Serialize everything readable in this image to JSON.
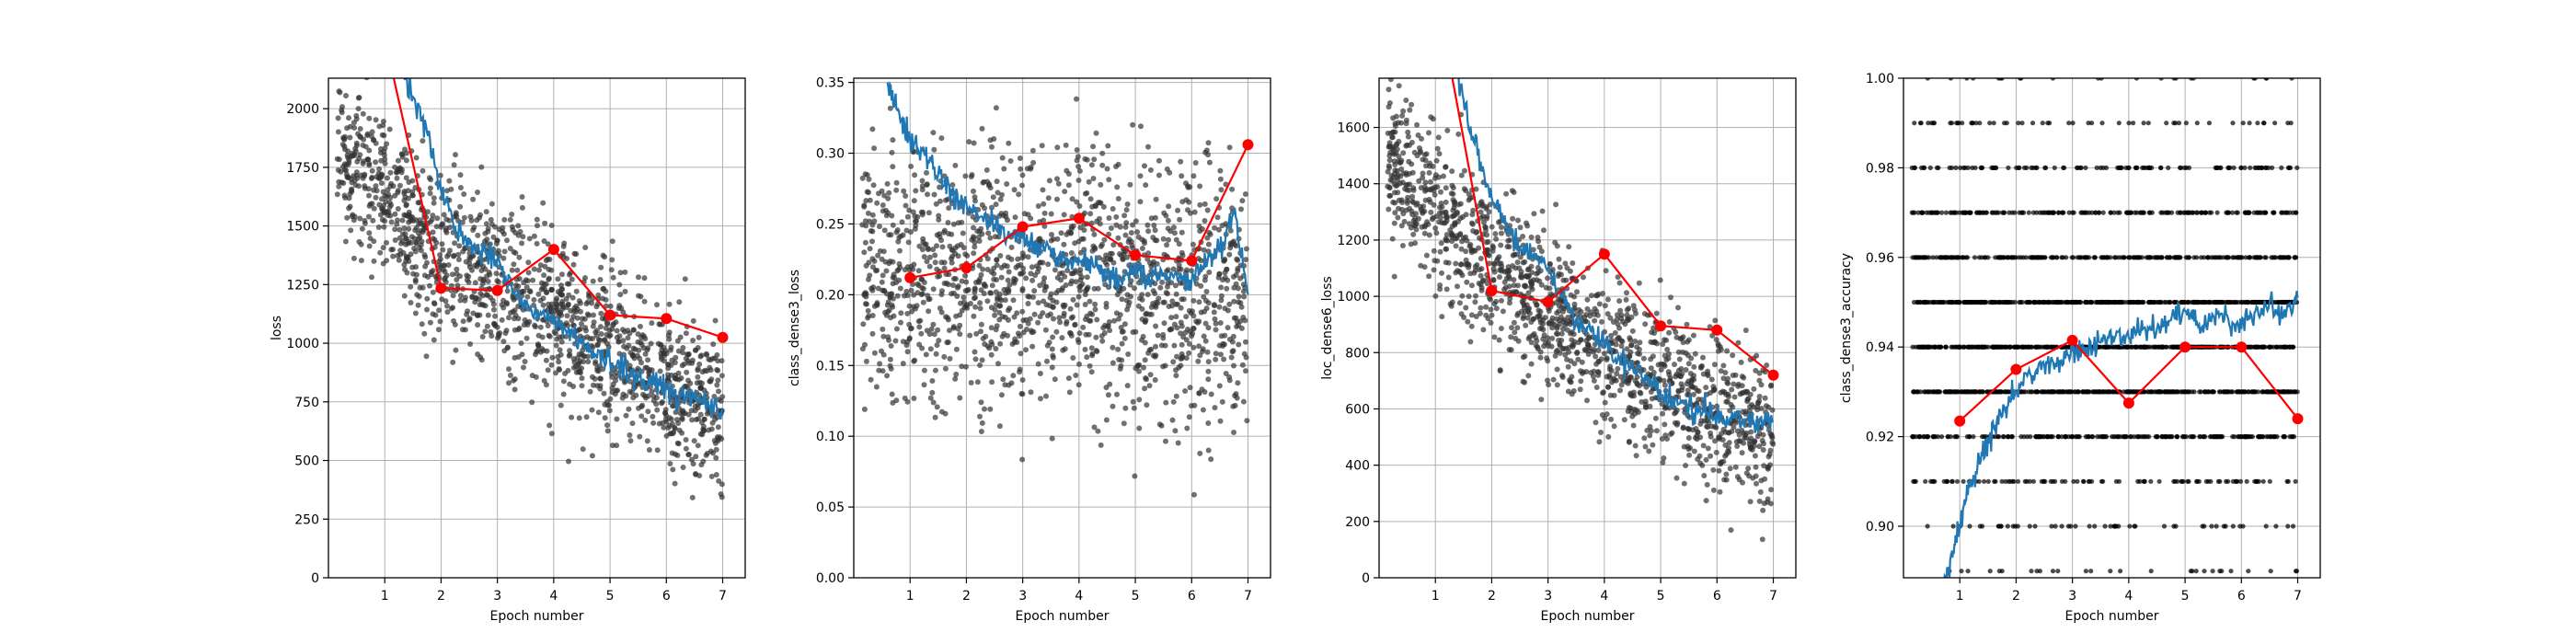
{
  "chart_data": [
    {
      "type": "line",
      "xlabel": "Epoch number",
      "ylabel": "loss",
      "xlim": [
        0,
        7.4
      ],
      "ylim": [
        0,
        2130
      ],
      "xticks": [
        1,
        2,
        3,
        4,
        5,
        6,
        7
      ],
      "yticks": [
        0,
        250,
        500,
        750,
        1000,
        1250,
        1500,
        1750,
        2000
      ],
      "grid": true,
      "series": [
        {
          "kind": "epoch-marker-line",
          "color": "#ff0000",
          "x": [
            1,
            2,
            3,
            4,
            5,
            6,
            7
          ],
          "y": [
            2300,
            1235,
            1225,
            1400,
            1120,
            1105,
            1025
          ]
        },
        {
          "kind": "running-average",
          "color": "#1f77b4",
          "x": [
            0.75,
            1.0,
            1.25,
            1.5,
            1.75,
            2.0,
            2.25,
            2.5,
            2.75,
            3.0,
            3.25,
            3.5,
            3.75,
            4.0,
            4.25,
            4.5,
            4.75,
            5.0,
            5.25,
            5.5,
            5.75,
            6.0,
            6.25,
            6.5,
            6.75,
            7.0
          ],
          "y": [
            2140,
            2300,
            2250,
            2050,
            1900,
            1650,
            1500,
            1420,
            1400,
            1360,
            1250,
            1150,
            1120,
            1080,
            1050,
            1000,
            950,
            920,
            900,
            860,
            820,
            800,
            770,
            760,
            740,
            720
          ]
        },
        {
          "kind": "scatter",
          "color": "#333333",
          "x_start": 0.15,
          "x_end": 7.0,
          "count": 1500,
          "trend": [
            [
              0.15,
              1800
            ],
            [
              2.0,
              1400
            ],
            [
              4.0,
              1100
            ],
            [
              7.0,
              700
            ]
          ],
          "spread": 280
        }
      ]
    },
    {
      "type": "line",
      "xlabel": "Epoch number",
      "ylabel": "class_dense3_loss",
      "xlim": [
        0,
        7.4
      ],
      "ylim": [
        0,
        0.353
      ],
      "xticks": [
        1,
        2,
        3,
        4,
        5,
        6,
        7
      ],
      "yticks": [
        0.0,
        0.05,
        0.1,
        0.15,
        0.2,
        0.25,
        0.3,
        0.35
      ],
      "yticklabels": [
        "0.00",
        "0.05",
        "0.10",
        "0.15",
        "0.20",
        "0.25",
        "0.30",
        "0.35"
      ],
      "grid": true,
      "series": [
        {
          "kind": "epoch-marker-line",
          "color": "#ff0000",
          "x": [
            1,
            2,
            3,
            4,
            5,
            6,
            7
          ],
          "y": [
            0.212,
            0.219,
            0.248,
            0.254,
            0.228,
            0.224,
            0.306
          ]
        },
        {
          "kind": "running-average",
          "color": "#1f77b4",
          "x": [
            0.6,
            0.8,
            1.0,
            1.25,
            1.5,
            1.75,
            2.0,
            2.25,
            2.5,
            2.75,
            3.0,
            3.25,
            3.5,
            3.75,
            4.0,
            4.25,
            4.5,
            4.75,
            5.0,
            5.25,
            5.5,
            5.75,
            6.0,
            6.25,
            6.5,
            6.75,
            7.0
          ],
          "y": [
            0.35,
            0.33,
            0.31,
            0.3,
            0.285,
            0.27,
            0.265,
            0.255,
            0.25,
            0.245,
            0.24,
            0.235,
            0.23,
            0.225,
            0.225,
            0.22,
            0.215,
            0.21,
            0.22,
            0.21,
            0.215,
            0.21,
            0.21,
            0.22,
            0.23,
            0.26,
            0.2
          ]
        },
        {
          "kind": "scatter",
          "color": "#333333",
          "x_start": 0.15,
          "x_end": 7.0,
          "count": 1500,
          "trend": [
            [
              0.15,
              0.22
            ],
            [
              7.0,
              0.2
            ]
          ],
          "spread": 0.075
        }
      ]
    },
    {
      "type": "line",
      "xlabel": "Epoch number",
      "ylabel": "loc_dense6_loss",
      "xlim": [
        0,
        7.4
      ],
      "ylim": [
        0,
        1775
      ],
      "xticks": [
        1,
        2,
        3,
        4,
        5,
        6,
        7
      ],
      "yticks": [
        0,
        200,
        400,
        600,
        800,
        1000,
        1200,
        1400,
        1600
      ],
      "grid": true,
      "series": [
        {
          "kind": "epoch-marker-line",
          "color": "#ff0000",
          "x": [
            1,
            2,
            3,
            4,
            5,
            6,
            7
          ],
          "y": [
            2100,
            1020,
            980,
            1150,
            895,
            880,
            720
          ]
        },
        {
          "kind": "running-average",
          "color": "#1f77b4",
          "x": [
            0.75,
            1.0,
            1.25,
            1.5,
            1.75,
            2.0,
            2.25,
            2.5,
            2.75,
            3.0,
            3.25,
            3.5,
            3.75,
            4.0,
            4.25,
            4.5,
            4.75,
            5.0,
            5.25,
            5.5,
            5.75,
            6.0,
            6.25,
            6.5,
            6.75,
            7.0
          ],
          "y": [
            1800,
            1950,
            1900,
            1700,
            1500,
            1350,
            1250,
            1180,
            1150,
            1100,
            1000,
            920,
            880,
            830,
            790,
            750,
            700,
            650,
            630,
            610,
            590,
            580,
            560,
            560,
            550,
            560
          ]
        },
        {
          "kind": "scatter",
          "color": "#333333",
          "x_start": 0.15,
          "x_end": 7.0,
          "count": 1500,
          "trend": [
            [
              0.15,
              1500
            ],
            [
              2.0,
              1100
            ],
            [
              4.0,
              800
            ],
            [
              7.0,
              500
            ]
          ],
          "spread": 230
        }
      ]
    },
    {
      "type": "line",
      "xlabel": "Epoch number",
      "ylabel": "class_dense3_accuracy",
      "xlim": [
        0,
        7.4
      ],
      "ylim": [
        0.8885,
        1.0
      ],
      "xticks": [
        1,
        2,
        3,
        4,
        5,
        6,
        7
      ],
      "yticks": [
        0.9,
        0.92,
        0.94,
        0.96,
        0.98,
        1.0
      ],
      "yticklabels": [
        "0.90",
        "0.92",
        "0.94",
        "0.96",
        "0.98",
        "1.00"
      ],
      "grid": true,
      "series": [
        {
          "kind": "epoch-marker-line",
          "color": "#ff0000",
          "x": [
            1,
            2,
            3,
            4,
            5,
            6,
            7
          ],
          "y": [
            0.9235,
            0.935,
            0.9415,
            0.9275,
            0.94,
            0.94,
            0.924
          ]
        },
        {
          "kind": "running-average",
          "color": "#1f77b4",
          "x": [
            0.7,
            0.85,
            1.0,
            1.2,
            1.4,
            1.6,
            1.8,
            2.0,
            2.25,
            2.5,
            2.75,
            3.0,
            3.25,
            3.5,
            3.75,
            4.0,
            4.25,
            4.5,
            4.75,
            5.0,
            5.25,
            5.5,
            5.75,
            6.0,
            6.25,
            6.5,
            6.75,
            7.0
          ],
          "y": [
            0.886,
            0.893,
            0.9,
            0.91,
            0.916,
            0.922,
            0.926,
            0.93,
            0.934,
            0.936,
            0.937,
            0.939,
            0.94,
            0.941,
            0.942,
            0.942,
            0.944,
            0.944,
            0.946,
            0.948,
            0.945,
            0.947,
            0.947,
            0.944,
            0.948,
            0.95,
            0.947,
            0.951
          ]
        },
        {
          "kind": "scatter-quantized",
          "color": "#000000",
          "x_start": 0.15,
          "x_end": 7.0,
          "count": 2200,
          "levels": [
            0.89,
            0.9,
            0.91,
            0.92,
            0.93,
            0.94,
            0.95,
            0.96,
            0.97,
            0.98,
            0.99,
            1.0
          ],
          "weights": [
            1,
            2,
            4,
            8,
            14,
            18,
            16,
            10,
            6,
            4,
            2,
            1
          ]
        }
      ]
    }
  ]
}
